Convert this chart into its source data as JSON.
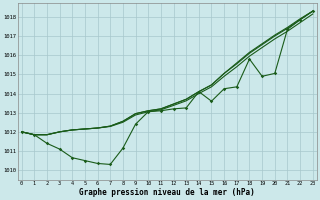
{
  "xlabel": "Graphe pression niveau de la mer (hPa)",
  "xlim": [
    -0.3,
    23.3
  ],
  "ylim": [
    1009.5,
    1018.7
  ],
  "yticks": [
    1010,
    1011,
    1012,
    1013,
    1014,
    1015,
    1016,
    1017,
    1018
  ],
  "xticks": [
    0,
    1,
    2,
    3,
    4,
    5,
    6,
    7,
    8,
    9,
    10,
    11,
    12,
    13,
    14,
    15,
    16,
    17,
    18,
    19,
    20,
    21,
    22,
    23
  ],
  "bg_color": "#cce8ea",
  "line_color": "#1a5c1a",
  "grid_color": "#a8c8cc",
  "series_marker": [
    1012.0,
    1011.85,
    1011.4,
    1011.1,
    1010.65,
    1010.5,
    1010.35,
    1010.3,
    1011.15,
    1012.4,
    1013.05,
    1013.1,
    1013.2,
    1013.25,
    1014.1,
    1013.6,
    1014.25,
    1014.35,
    1015.8,
    1014.9,
    1015.05,
    1017.35,
    1017.85,
    1018.3
  ],
  "series_line1": [
    1012.0,
    1011.85,
    1011.85,
    1012.0,
    1012.1,
    1012.15,
    1012.2,
    1012.3,
    1012.55,
    1012.95,
    1013.1,
    1013.2,
    1013.45,
    1013.7,
    1014.1,
    1014.45,
    1015.05,
    1015.6,
    1016.15,
    1016.6,
    1017.05,
    1017.45,
    1017.9,
    1018.3
  ],
  "series_line2": [
    1012.0,
    1011.85,
    1011.85,
    1012.0,
    1012.1,
    1012.15,
    1012.2,
    1012.3,
    1012.55,
    1012.95,
    1013.1,
    1013.2,
    1013.45,
    1013.7,
    1014.1,
    1014.45,
    1015.05,
    1015.55,
    1016.1,
    1016.55,
    1017.0,
    1017.4,
    1017.85,
    1018.3
  ],
  "series_line3": [
    1012.0,
    1011.85,
    1011.85,
    1012.0,
    1012.1,
    1012.15,
    1012.2,
    1012.28,
    1012.5,
    1012.88,
    1013.05,
    1013.15,
    1013.38,
    1013.62,
    1014.0,
    1014.35,
    1014.9,
    1015.4,
    1015.95,
    1016.4,
    1016.85,
    1017.25,
    1017.7,
    1018.15
  ]
}
